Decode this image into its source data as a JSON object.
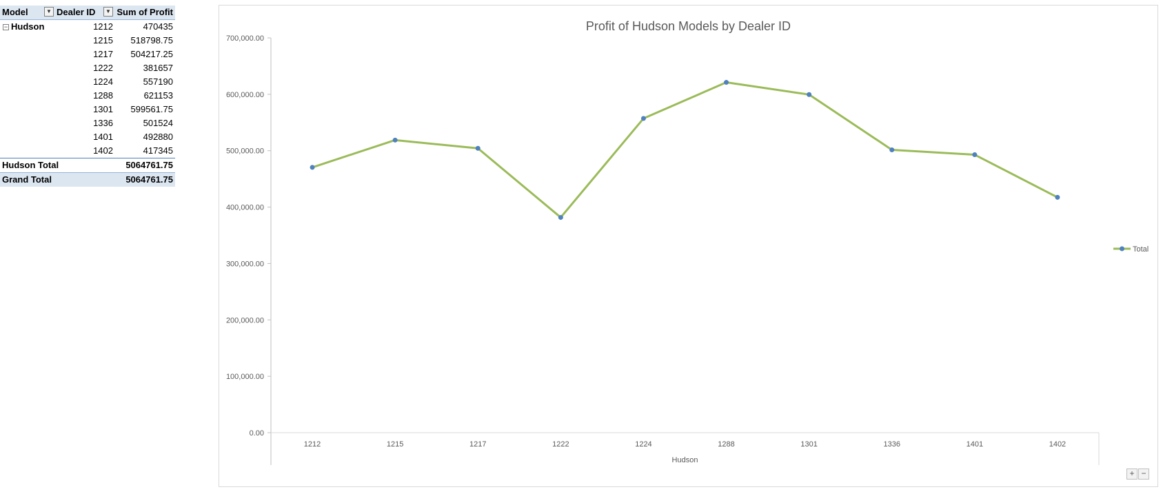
{
  "pivot": {
    "headers": {
      "model": "Model",
      "dealer": "Dealer ID",
      "profit": "Sum of Profit"
    },
    "group": "Hudson",
    "rows": [
      {
        "dealer": "1212",
        "profit": "470435"
      },
      {
        "dealer": "1215",
        "profit": "518798.75"
      },
      {
        "dealer": "1217",
        "profit": "504217.25"
      },
      {
        "dealer": "1222",
        "profit": "381657"
      },
      {
        "dealer": "1224",
        "profit": "557190"
      },
      {
        "dealer": "1288",
        "profit": "621153"
      },
      {
        "dealer": "1301",
        "profit": "599561.75"
      },
      {
        "dealer": "1336",
        "profit": "501524"
      },
      {
        "dealer": "1401",
        "profit": "492880"
      },
      {
        "dealer": "1402",
        "profit": "417345"
      }
    ],
    "subtotal": {
      "label": "Hudson Total",
      "value": "5064761.75"
    },
    "grand": {
      "label": "Grand Total",
      "value": "5064761.75"
    },
    "icons": {
      "filter": "filter-dropdown-icon",
      "dropdown": "chevron-down-icon",
      "collapse": "minus-box-icon"
    }
  },
  "chart_data": {
    "type": "line",
    "title": "Profit of Hudson Models by Dealer ID",
    "categories": [
      "1212",
      "1215",
      "1217",
      "1222",
      "1224",
      "1288",
      "1301",
      "1336",
      "1401",
      "1402"
    ],
    "group_label": "Hudson",
    "series": [
      {
        "name": "Total",
        "values": [
          470435,
          518798.75,
          504217.25,
          381657,
          557190,
          621153,
          599561.75,
          501524,
          492880,
          417345
        ],
        "line_color": "#9bbb59",
        "marker_color": "#4f81bd"
      }
    ],
    "ylim": [
      0,
      700000
    ],
    "yticks": [
      "0.00",
      "100,000.00",
      "200,000.00",
      "300,000.00",
      "400,000.00",
      "500,000.00",
      "600,000.00",
      "700,000.00"
    ],
    "grid": false,
    "legend": "right"
  },
  "chart_ui": {
    "zoom_in": "+",
    "zoom_out": "−"
  }
}
